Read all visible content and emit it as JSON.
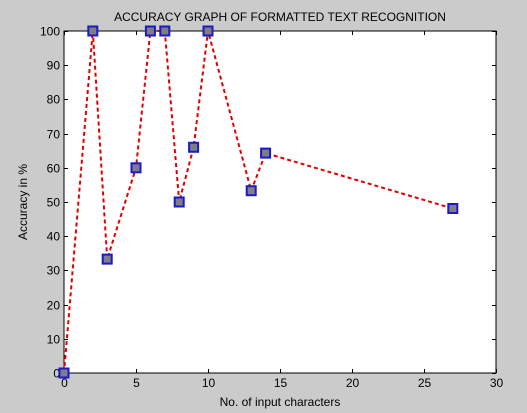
{
  "chart_data": {
    "type": "line",
    "title": "ACCURACY GRAPH OF FORMATTED TEXT RECOGNITION",
    "xlabel": "No. of input characters",
    "ylabel": "Accuracy in %",
    "xlim": [
      0,
      30
    ],
    "ylim": [
      0,
      100
    ],
    "xticks": [
      0,
      5,
      10,
      15,
      20,
      25,
      30
    ],
    "yticks": [
      0,
      10,
      20,
      30,
      40,
      50,
      60,
      70,
      80,
      90,
      100
    ],
    "grid": false,
    "series": [
      {
        "x": [
          0,
          2,
          3,
          5,
          6,
          7,
          8,
          9,
          10,
          13,
          14,
          27
        ],
        "y": [
          0,
          100,
          33.3,
          60,
          100,
          100,
          50,
          66,
          100,
          53.3,
          64.3,
          48.1
        ],
        "line_color": "#e00000",
        "line_style": "dashed",
        "marker": "square",
        "marker_face": "#7f7f7f",
        "marker_edge": "#1a1acc"
      }
    ]
  },
  "colors": {
    "figure_background": "#cbcbcb",
    "axes_background": "#ffffff"
  }
}
